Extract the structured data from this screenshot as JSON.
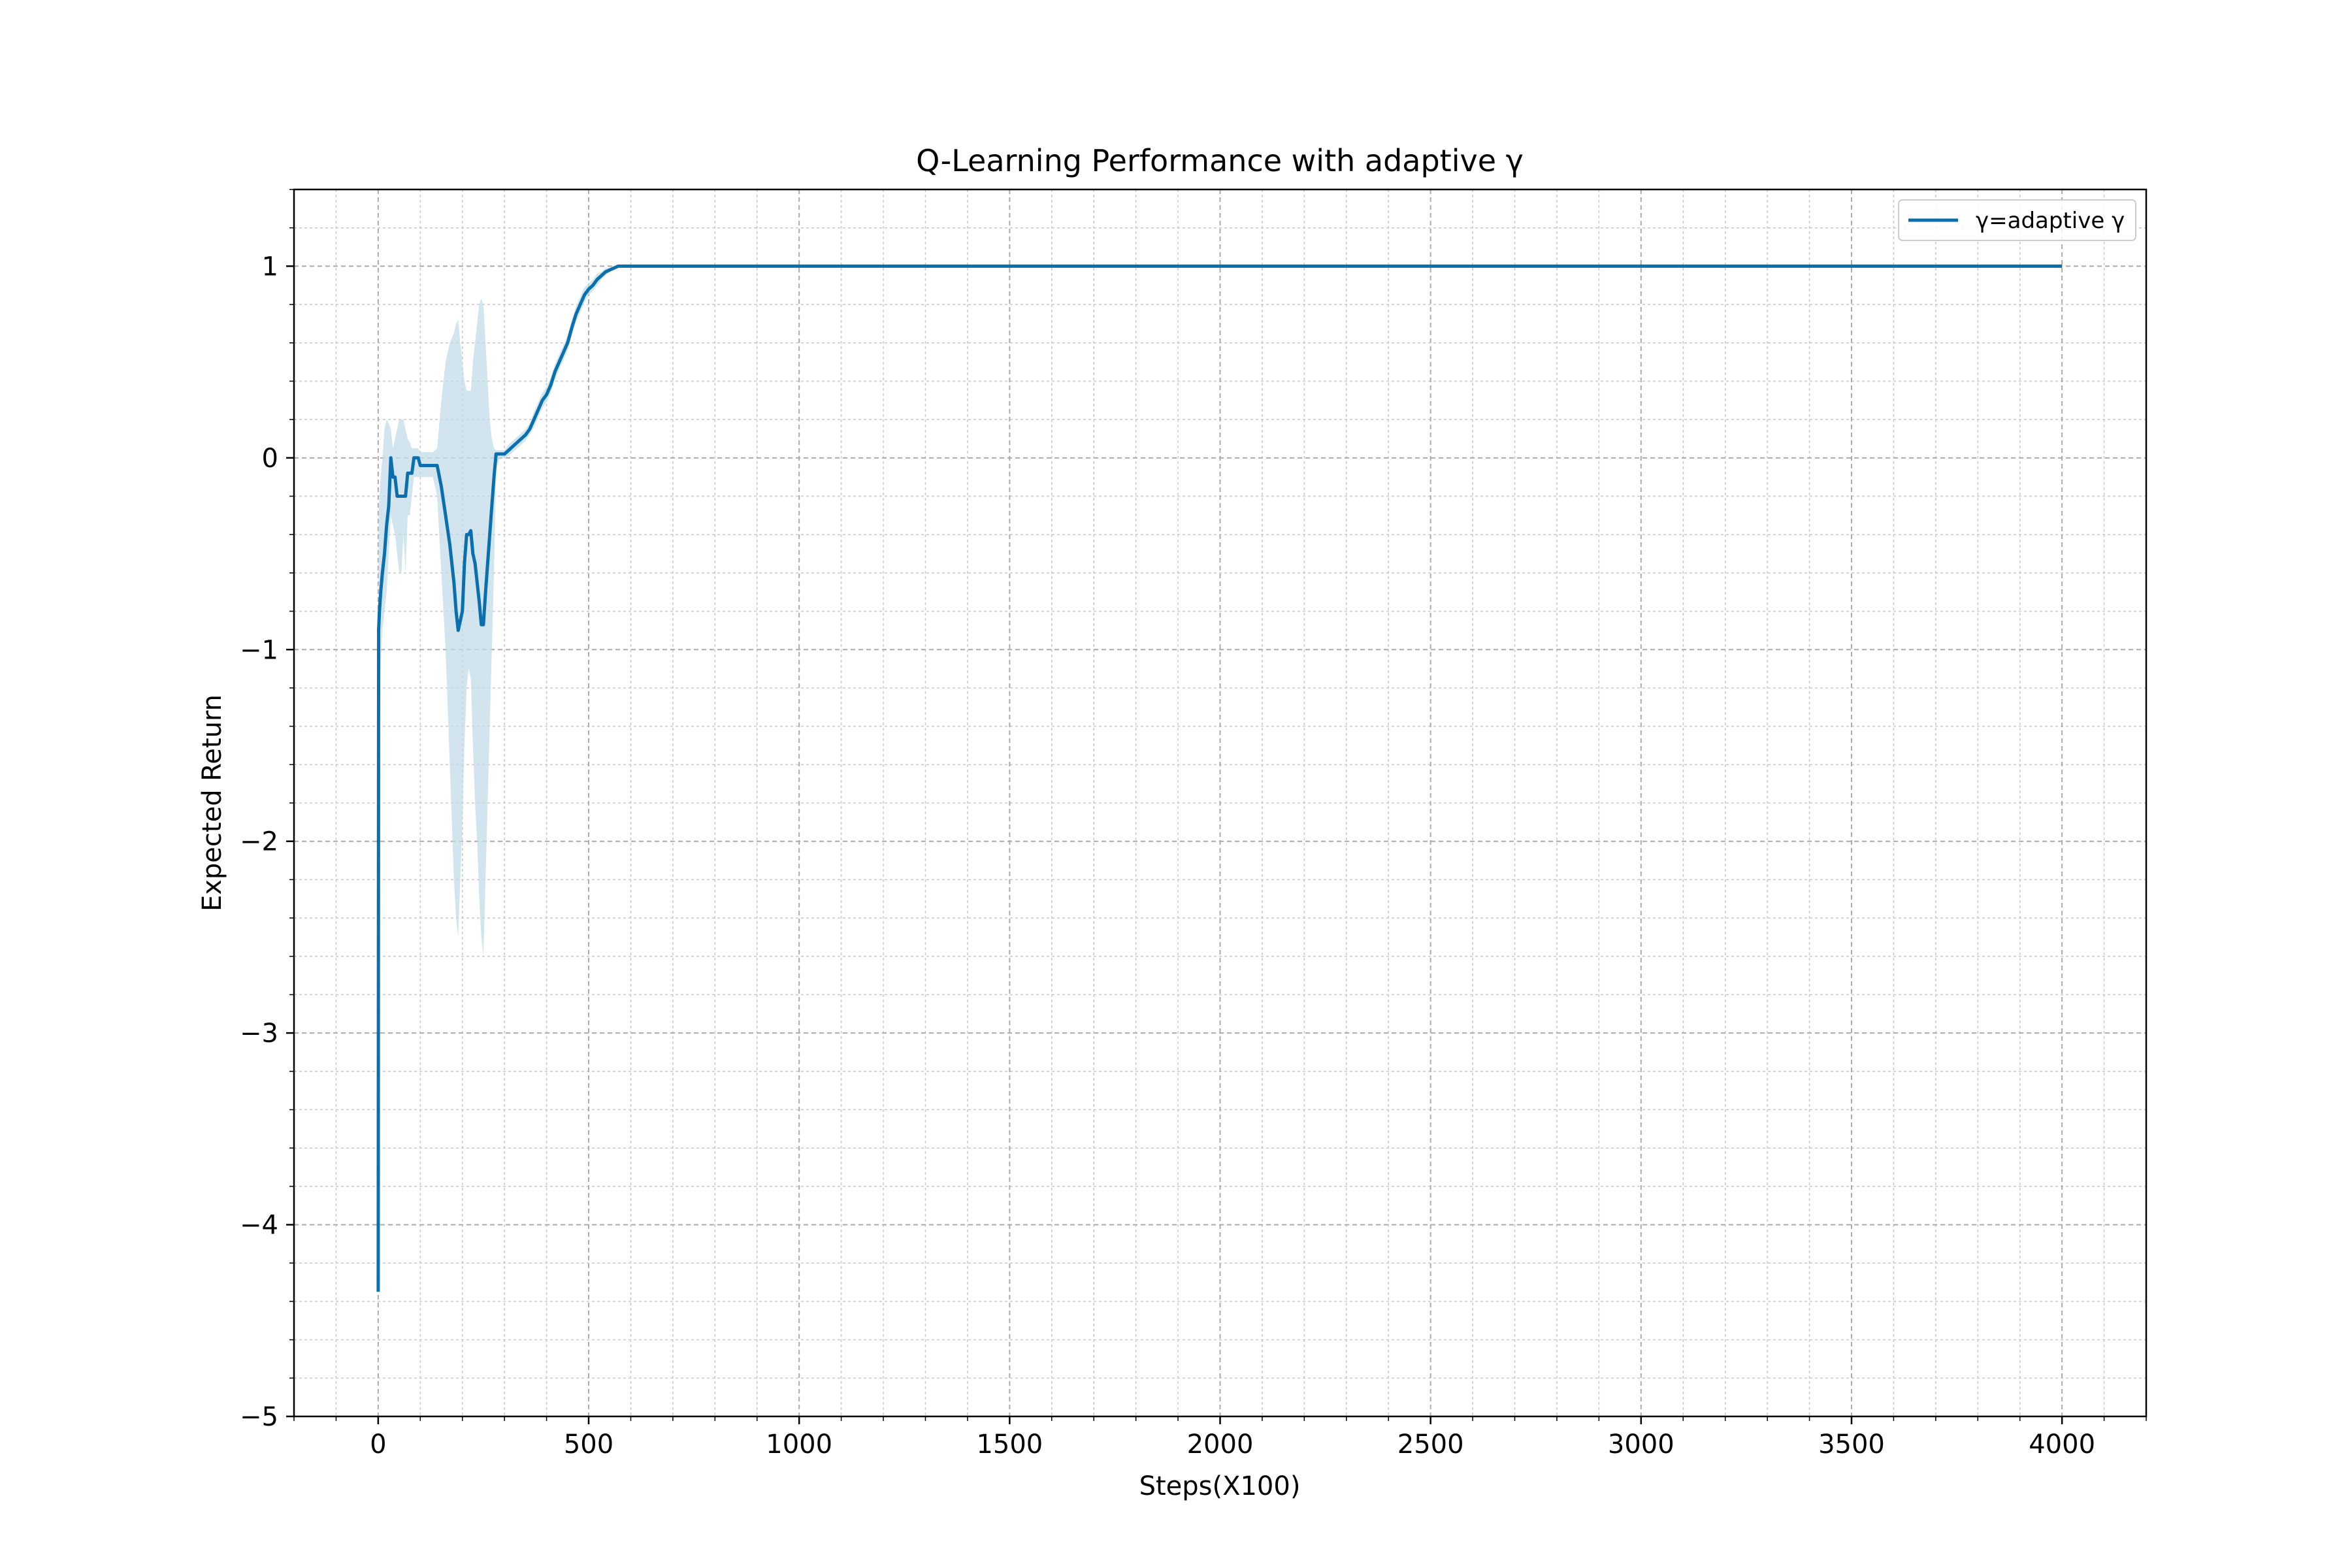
{
  "chart_data": {
    "type": "line",
    "title": "Q-Learning Performance with adaptive γ",
    "xlabel": "Steps(X100)",
    "ylabel": "Expected Return",
    "xlim": [
      -200,
      4200
    ],
    "ylim": [
      -5,
      1.4
    ],
    "x_ticks": [
      0,
      500,
      1000,
      1500,
      2000,
      2500,
      3000,
      3500,
      4000
    ],
    "x_tick_labels": [
      "0",
      "500",
      "1000",
      "1500",
      "2000",
      "2500",
      "3000",
      "3500",
      "4000"
    ],
    "y_ticks": [
      1,
      0,
      -1,
      -2,
      -3,
      -4,
      -5
    ],
    "y_tick_labels": [
      "1",
      "0",
      "−1",
      "−2",
      "−3",
      "−4",
      "−5"
    ],
    "x_minor_step": 100,
    "y_minor_step": 0.2,
    "grid": true,
    "legend_position": "top-right",
    "colors": {
      "line": "#0a6fac",
      "band": "#c3dcea"
    },
    "series": [
      {
        "name": "γ=adaptive γ",
        "x": [
          0,
          1,
          3,
          6,
          10,
          15,
          20,
          25,
          30,
          35,
          40,
          45,
          50,
          55,
          60,
          65,
          70,
          75,
          80,
          85,
          90,
          95,
          100,
          110,
          120,
          130,
          140,
          150,
          160,
          170,
          180,
          185,
          190,
          195,
          200,
          205,
          210,
          215,
          220,
          225,
          230,
          235,
          240,
          245,
          250,
          255,
          260,
          265,
          270,
          275,
          280,
          290,
          300,
          310,
          320,
          330,
          340,
          350,
          360,
          370,
          380,
          390,
          400,
          410,
          420,
          430,
          440,
          450,
          460,
          470,
          480,
          490,
          500,
          510,
          520,
          530,
          540,
          550,
          560,
          570,
          580,
          590,
          600,
          650,
          700,
          800,
          1000,
          1500,
          2000,
          2500,
          3000,
          3500,
          4000
        ],
        "y": [
          -4.35,
          -0.9,
          -0.8,
          -0.7,
          -0.6,
          -0.5,
          -0.35,
          -0.25,
          0.0,
          -0.1,
          -0.1,
          -0.2,
          -0.2,
          -0.2,
          -0.2,
          -0.2,
          -0.08,
          -0.08,
          -0.08,
          0.0,
          0.0,
          0.0,
          -0.04,
          -0.04,
          -0.04,
          -0.04,
          -0.04,
          -0.15,
          -0.3,
          -0.45,
          -0.65,
          -0.8,
          -0.9,
          -0.85,
          -0.8,
          -0.55,
          -0.4,
          -0.4,
          -0.38,
          -0.5,
          -0.55,
          -0.65,
          -0.75,
          -0.87,
          -0.87,
          -0.7,
          -0.55,
          -0.4,
          -0.25,
          -0.1,
          0.02,
          0.02,
          0.02,
          0.04,
          0.06,
          0.08,
          0.1,
          0.12,
          0.15,
          0.2,
          0.25,
          0.3,
          0.33,
          0.38,
          0.45,
          0.5,
          0.55,
          0.6,
          0.68,
          0.75,
          0.8,
          0.85,
          0.88,
          0.9,
          0.93,
          0.95,
          0.97,
          0.98,
          0.99,
          1.0,
          1.0,
          1.0,
          1.0,
          1.0,
          1.0,
          1.0,
          1.0,
          1.0,
          1.0,
          1.0,
          1.0,
          1.0,
          1.0
        ],
        "lower": [
          -4.35,
          -1.6,
          -1.3,
          -1.1,
          -0.9,
          -0.8,
          -0.7,
          -0.5,
          -0.3,
          -0.35,
          -0.4,
          -0.5,
          -0.6,
          -0.6,
          -0.4,
          -0.6,
          -0.3,
          -0.3,
          -0.2,
          -0.1,
          -0.1,
          -0.1,
          -0.1,
          -0.1,
          -0.1,
          -0.1,
          -0.2,
          -0.6,
          -1.0,
          -1.6,
          -2.2,
          -2.4,
          -2.5,
          -2.2,
          -1.9,
          -1.5,
          -1.2,
          -1.1,
          -1.15,
          -1.5,
          -1.8,
          -2.0,
          -2.3,
          -2.5,
          -2.6,
          -2.2,
          -1.8,
          -1.4,
          -1.0,
          -0.6,
          -0.05,
          0.0,
          0.0,
          0.01,
          0.03,
          0.05,
          0.07,
          0.09,
          0.12,
          0.16,
          0.21,
          0.26,
          0.29,
          0.34,
          0.41,
          0.46,
          0.51,
          0.56,
          0.64,
          0.71,
          0.76,
          0.81,
          0.85,
          0.87,
          0.9,
          0.93,
          0.95,
          0.97,
          0.98,
          0.99,
          1.0,
          1.0,
          1.0,
          1.0,
          1.0,
          1.0,
          1.0,
          1.0,
          1.0,
          1.0,
          1.0,
          1.0,
          1.0
        ],
        "upper": [
          -4.35,
          -0.3,
          -0.2,
          -0.1,
          0.0,
          0.15,
          0.2,
          0.18,
          0.15,
          0.05,
          0.1,
          0.15,
          0.2,
          0.2,
          0.2,
          0.15,
          0.1,
          0.08,
          0.05,
          0.05,
          0.05,
          0.05,
          0.03,
          0.03,
          0.03,
          0.03,
          0.05,
          0.3,
          0.5,
          0.6,
          0.65,
          0.7,
          0.72,
          0.6,
          0.5,
          0.4,
          0.35,
          0.35,
          0.35,
          0.5,
          0.6,
          0.7,
          0.8,
          0.83,
          0.8,
          0.6,
          0.4,
          0.2,
          0.1,
          0.05,
          0.04,
          0.04,
          0.04,
          0.07,
          0.09,
          0.11,
          0.13,
          0.15,
          0.18,
          0.24,
          0.29,
          0.34,
          0.37,
          0.42,
          0.49,
          0.54,
          0.59,
          0.64,
          0.72,
          0.79,
          0.84,
          0.89,
          0.91,
          0.93,
          0.96,
          0.97,
          0.99,
          0.99,
          1.0,
          1.0,
          1.0,
          1.0,
          1.0,
          1.0,
          1.0,
          1.0,
          1.0,
          1.0,
          1.0,
          1.0,
          1.0,
          1.0,
          1.0
        ]
      }
    ]
  }
}
